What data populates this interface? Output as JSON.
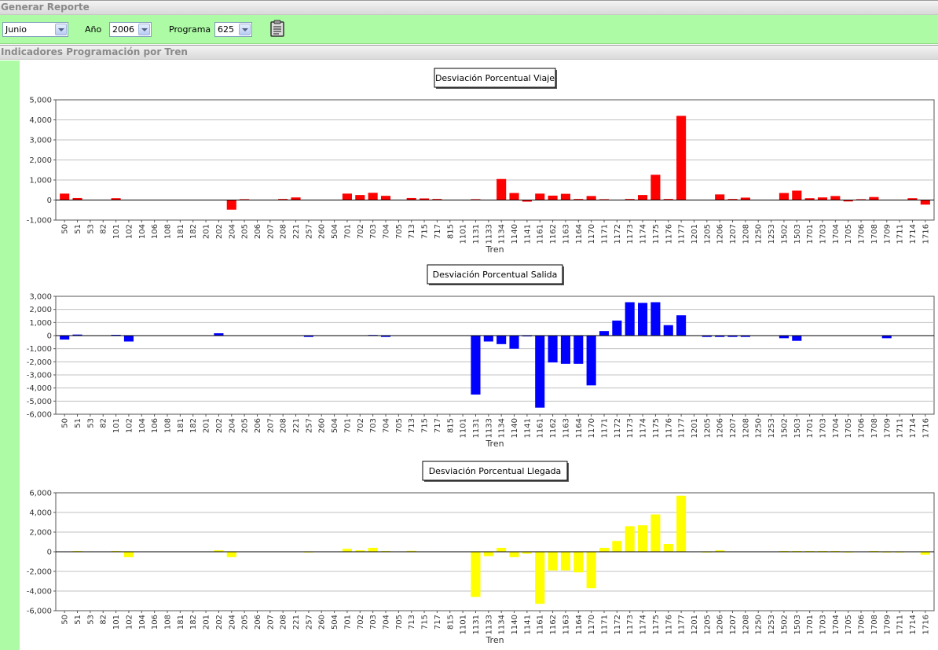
{
  "header": {
    "title": "Generar Reporte"
  },
  "filters": {
    "month": "Junio",
    "year_label": "Año",
    "year": "2006",
    "program_label": "Programa",
    "program": "625"
  },
  "section": {
    "title": "Indicadores Programación por Tren"
  },
  "colors": {
    "viaje": "#ff0000",
    "salida": "#0000ff",
    "llegada": "#ffff00",
    "toolbar": "#adfca5"
  },
  "icons": {
    "report_button": "clipboard-icon",
    "dropdown": "chevron-down-icon"
  },
  "chart_data": [
    {
      "type": "bar",
      "title": "Desviación Porcentual Viaje",
      "xlabel": "Tren",
      "ylim": [
        -1000,
        5000
      ],
      "yticks": [
        "5,000",
        "4,000",
        "3,000",
        "2,000",
        "1,000",
        "0",
        "-1,000"
      ],
      "grid": true,
      "color": "#ff0000",
      "categories": [
        "50",
        "51",
        "53",
        "82",
        "101",
        "102",
        "104",
        "106",
        "108",
        "181",
        "182",
        "201",
        "202",
        "204",
        "205",
        "206",
        "207",
        "208",
        "221",
        "257",
        "260",
        "504",
        "701",
        "702",
        "703",
        "704",
        "705",
        "713",
        "715",
        "717",
        "815",
        "1101",
        "1131",
        "1133",
        "1134",
        "1140",
        "1141",
        "1161",
        "1162",
        "1163",
        "1164",
        "1170",
        "1171",
        "1172",
        "1173",
        "1174",
        "1175",
        "1176",
        "1177",
        "1201",
        "1205",
        "1206",
        "1207",
        "1208",
        "1250",
        "1253",
        "1502",
        "1503",
        "1701",
        "1703",
        "1704",
        "1705",
        "1706",
        "1708",
        "1709",
        "1711",
        "1714",
        "1716"
      ],
      "values": [
        320,
        100,
        0,
        0,
        90,
        0,
        0,
        0,
        0,
        0,
        0,
        0,
        0,
        -480,
        40,
        0,
        0,
        50,
        130,
        0,
        0,
        0,
        320,
        250,
        360,
        210,
        0,
        100,
        80,
        50,
        0,
        0,
        40,
        0,
        1050,
        350,
        -80,
        320,
        220,
        310,
        50,
        200,
        40,
        0,
        50,
        250,
        1260,
        50,
        4200,
        0,
        0,
        280,
        50,
        120,
        0,
        0,
        350,
        470,
        90,
        130,
        200,
        -70,
        40,
        150,
        0,
        0,
        90,
        -230
      ]
    },
    {
      "type": "bar",
      "title": "Desviación Porcentual Salida",
      "xlabel": "Tren",
      "ylim": [
        -6000,
        3000
      ],
      "yticks": [
        "3,000",
        "2,000",
        "1,000",
        "0",
        "-1,000",
        "-2,000",
        "-3,000",
        "-4,000",
        "-5,000",
        "-6,000"
      ],
      "grid": true,
      "color": "#0000ff",
      "categories": [
        "50",
        "51",
        "53",
        "82",
        "101",
        "102",
        "104",
        "106",
        "108",
        "181",
        "182",
        "201",
        "202",
        "204",
        "205",
        "206",
        "207",
        "208",
        "221",
        "257",
        "260",
        "504",
        "701",
        "702",
        "703",
        "704",
        "705",
        "713",
        "715",
        "717",
        "815",
        "1101",
        "1131",
        "1133",
        "1134",
        "1140",
        "1141",
        "1161",
        "1162",
        "1163",
        "1164",
        "1170",
        "1171",
        "1172",
        "1173",
        "1174",
        "1175",
        "1176",
        "1177",
        "1201",
        "1205",
        "1206",
        "1207",
        "1208",
        "1250",
        "1253",
        "1502",
        "1503",
        "1701",
        "1703",
        "1704",
        "1705",
        "1706",
        "1708",
        "1709",
        "1711",
        "1714",
        "1716"
      ],
      "values": [
        -300,
        80,
        0,
        0,
        60,
        -450,
        0,
        0,
        0,
        0,
        0,
        0,
        180,
        0,
        0,
        0,
        0,
        0,
        0,
        -100,
        0,
        0,
        0,
        0,
        50,
        -100,
        0,
        0,
        0,
        0,
        0,
        0,
        -4500,
        -450,
        -650,
        -1000,
        -50,
        -5500,
        -2050,
        -2150,
        -2150,
        -3800,
        350,
        1150,
        2550,
        2500,
        2550,
        800,
        1550,
        0,
        -100,
        -100,
        -100,
        -100,
        0,
        0,
        -200,
        -400,
        0,
        0,
        0,
        0,
        0,
        0,
        -200,
        0,
        0,
        0
      ]
    },
    {
      "type": "bar",
      "title": "Desviación Porcentual Llegada",
      "xlabel": "Tren",
      "ylim": [
        -6000,
        6000
      ],
      "yticks": [
        "6,000",
        "4,000",
        "2,000",
        "0",
        "-2,000",
        "-4,000",
        "-6,000"
      ],
      "grid": true,
      "color": "#ffff00",
      "categories": [
        "50",
        "51",
        "53",
        "82",
        "101",
        "102",
        "104",
        "106",
        "108",
        "181",
        "182",
        "201",
        "202",
        "204",
        "205",
        "206",
        "207",
        "208",
        "221",
        "257",
        "260",
        "504",
        "701",
        "702",
        "703",
        "704",
        "705",
        "713",
        "715",
        "717",
        "815",
        "1101",
        "1131",
        "1133",
        "1134",
        "1140",
        "1141",
        "1161",
        "1162",
        "1163",
        "1164",
        "1170",
        "1171",
        "1172",
        "1173",
        "1174",
        "1175",
        "1176",
        "1177",
        "1201",
        "1205",
        "1206",
        "1207",
        "1208",
        "1250",
        "1253",
        "1502",
        "1503",
        "1701",
        "1703",
        "1704",
        "1705",
        "1706",
        "1708",
        "1709",
        "1711",
        "1714",
        "1716"
      ],
      "values": [
        0,
        80,
        0,
        0,
        80,
        -550,
        0,
        0,
        0,
        0,
        0,
        0,
        150,
        -550,
        0,
        0,
        0,
        0,
        0,
        -80,
        0,
        0,
        300,
        150,
        400,
        80,
        0,
        100,
        0,
        0,
        0,
        0,
        -4600,
        -450,
        400,
        -550,
        -200,
        -5300,
        -1900,
        -1900,
        -2100,
        -3700,
        400,
        1100,
        2600,
        2700,
        3800,
        800,
        5700,
        0,
        -80,
        150,
        0,
        0,
        0,
        0,
        80,
        80,
        80,
        80,
        80,
        -60,
        0,
        80,
        -80,
        -80,
        0,
        -300
      ]
    }
  ]
}
